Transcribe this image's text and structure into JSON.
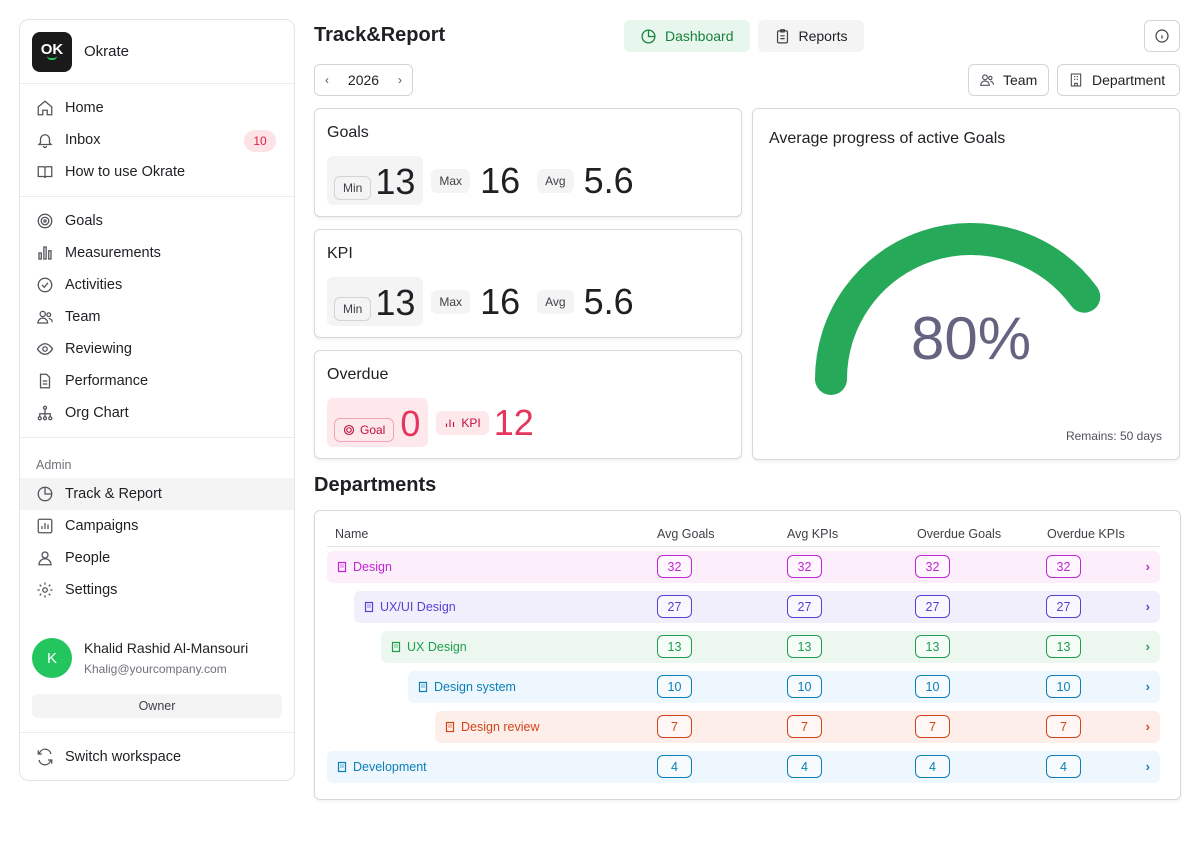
{
  "workspace": {
    "logo": "OK",
    "name": "Okrate"
  },
  "nav_top": [
    {
      "label": "Home",
      "icon": "home-icon"
    },
    {
      "label": "Inbox",
      "icon": "bell-icon",
      "badge": "10"
    },
    {
      "label": "How to use Okrate",
      "icon": "book-icon"
    }
  ],
  "nav_main": [
    {
      "label": "Goals",
      "icon": "target-icon"
    },
    {
      "label": "Measurements",
      "icon": "bar-chart-icon"
    },
    {
      "label": "Activities",
      "icon": "check-circle-icon"
    },
    {
      "label": "Team",
      "icon": "users-icon"
    },
    {
      "label": "Reviewing",
      "icon": "eye-icon"
    },
    {
      "label": "Performance",
      "icon": "document-icon"
    },
    {
      "label": "Org Chart",
      "icon": "org-chart-icon"
    }
  ],
  "admin": {
    "label": "Admin",
    "items": [
      {
        "label": "Track & Report",
        "icon": "pie-chart-icon"
      },
      {
        "label": "Campaigns",
        "icon": "campaign-icon"
      },
      {
        "label": "People",
        "icon": "user-icon"
      },
      {
        "label": "Settings",
        "icon": "gear-icon"
      }
    ]
  },
  "user": {
    "initial": "K",
    "name": "Khalid Rashid Al-Mansouri",
    "email": "Khalig@yourcompany.com",
    "role": "Owner"
  },
  "switch_label": "Switch workspace",
  "header": {
    "title": "Track&Report",
    "tabs": [
      {
        "label": "Dashboard",
        "icon": "pie-chart-icon"
      },
      {
        "label": "Reports",
        "icon": "clipboard-icon"
      }
    ],
    "year": "2026",
    "filters": [
      {
        "label": "Team",
        "icon": "users-icon"
      },
      {
        "label": "Department",
        "icon": "building-icon"
      }
    ]
  },
  "goals": {
    "title": "Goals",
    "min_label": "Min",
    "min": "13",
    "max_label": "Max",
    "max": "16",
    "avg_label": "Avg",
    "avg": "5.6"
  },
  "kpi": {
    "title": "KPI",
    "min_label": "Min",
    "min": "13",
    "max_label": "Max",
    "max": "16",
    "avg_label": "Avg",
    "avg": "5.6"
  },
  "overdue": {
    "title": "Overdue",
    "goal_label": "Goal",
    "goal": "0",
    "kpi_label": "KPI",
    "kpi": "12"
  },
  "progress": {
    "title": "Average progress of active Goals",
    "value_text": "80%",
    "fraction": 0.8,
    "remains": "Remains: 50 days",
    "color": "#27a95a"
  },
  "departments": {
    "title": "Departments",
    "columns": [
      "Name",
      "Avg Goals",
      "Avg KPIs",
      "Overdue Goals",
      "Overdue KPIs"
    ],
    "rows": [
      {
        "name": "Design",
        "level": 0,
        "values": [
          "32",
          "32",
          "32",
          "32"
        ],
        "bg": "#fdeefb",
        "fg": "#c026d3"
      },
      {
        "name": "UX/UI Design",
        "level": 1,
        "values": [
          "27",
          "27",
          "27",
          "27"
        ],
        "bg": "#f2effd",
        "fg": "#5b3fd1"
      },
      {
        "name": "UX Design",
        "level": 2,
        "values": [
          "13",
          "13",
          "13",
          "13"
        ],
        "bg": "#ecf8ef",
        "fg": "#1f9d4f"
      },
      {
        "name": "Design system",
        "level": 3,
        "values": [
          "10",
          "10",
          "10",
          "10"
        ],
        "bg": "#eef7fd",
        "fg": "#0a7fb8"
      },
      {
        "name": "Design review",
        "level": 4,
        "values": [
          "7",
          "7",
          "7",
          "7"
        ],
        "bg": "#fdeee9",
        "fg": "#d1451c"
      },
      {
        "name": "Development",
        "level": 0,
        "values": [
          "4",
          "4",
          "4",
          "4"
        ],
        "bg": "#eef7fd",
        "fg": "#0a7fb8"
      }
    ]
  }
}
